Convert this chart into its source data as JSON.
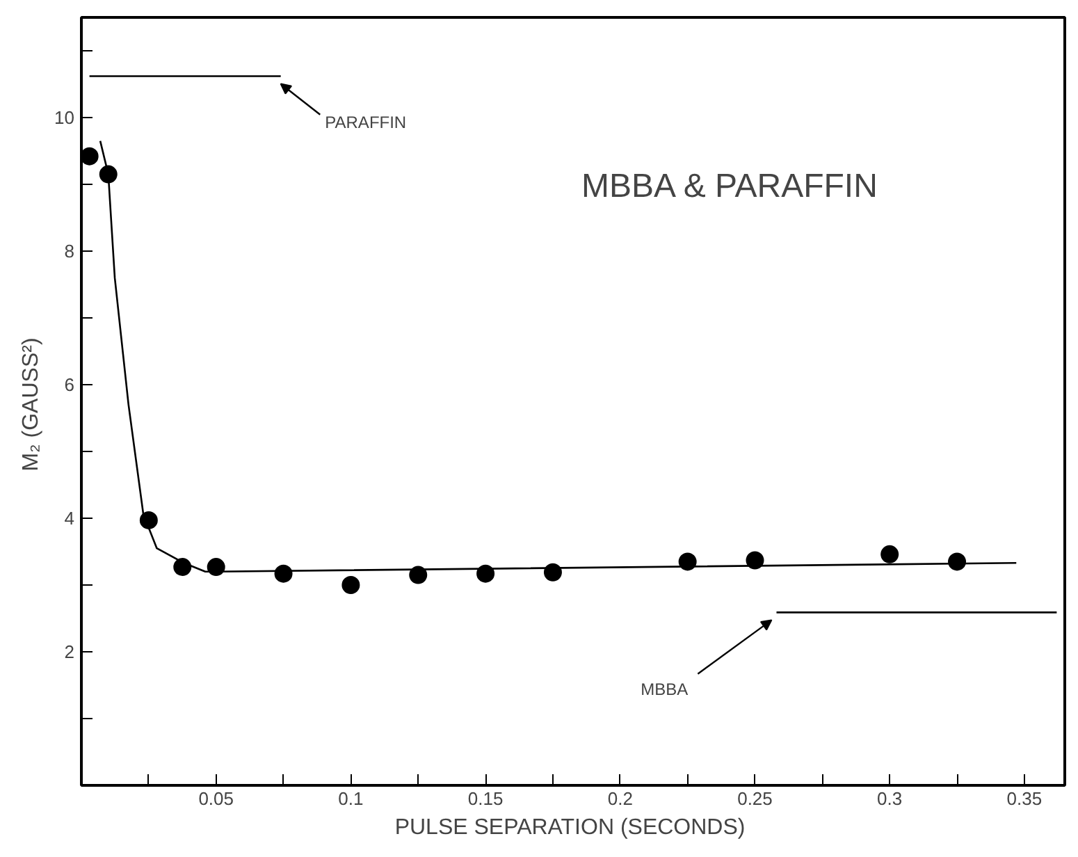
{
  "chart_data": {
    "type": "scatter",
    "title": "MBBA & PARAFFIN",
    "xlabel": "PULSE SEPARATION  (SECONDS)",
    "ylabel": "M₂  (GAUSS²)",
    "xlim": [
      0,
      0.365
    ],
    "ylim": [
      0,
      11.5
    ],
    "xticks": [
      {
        "value": 0.025,
        "label": null
      },
      0.05,
      {
        "value": 0.075,
        "label": null
      },
      0.1,
      {
        "value": 0.125,
        "label": null
      },
      0.15,
      {
        "value": 0.175,
        "label": null
      },
      0.2,
      {
        "value": 0.225,
        "label": null
      },
      0.25,
      {
        "value": 0.275,
        "label": null
      },
      0.3,
      {
        "value": 0.325,
        "label": null
      },
      0.35
    ],
    "yticks": [
      {
        "value": 1,
        "label": null
      },
      2,
      {
        "value": 3,
        "label": null
      },
      4,
      {
        "value": 5,
        "label": null
      },
      6,
      {
        "value": 7,
        "label": null
      },
      8,
      {
        "value": 9,
        "label": null
      },
      10,
      {
        "value": 11,
        "label": null
      }
    ],
    "series": [
      {
        "marker": "circle",
        "color": "#000000",
        "x": [
          0.003,
          0.01,
          0.025,
          0.0375,
          0.05,
          0.075,
          0.1,
          0.125,
          0.15,
          0.175,
          0.225,
          0.25,
          0.3,
          0.325
        ],
        "values": [
          9.42,
          9.15,
          3.97,
          3.27,
          3.27,
          3.17,
          3.0,
          3.15,
          3.17,
          3.19,
          3.35,
          3.37,
          3.46,
          3.35
        ]
      },
      {
        "type": "line",
        "color": "#000000",
        "x": [
          0.007,
          0.01,
          0.011,
          0.0124,
          0.0175,
          0.023,
          0.028,
          0.038,
          0.046,
          0.05,
          0.347
        ],
        "values": [
          9.65,
          9.15,
          8.5,
          7.6,
          5.7,
          4.06,
          3.55,
          3.33,
          3.2,
          3.2,
          3.33
        ]
      },
      {
        "type": "line",
        "name": "PARAFFIN",
        "color": "#000000",
        "x": [
          0.003,
          0.074
        ],
        "values": [
          10.62,
          10.62
        ]
      },
      {
        "type": "line",
        "name": "MBBA",
        "color": "#000000",
        "x": [
          0.258,
          0.362
        ],
        "values": [
          2.59,
          2.59
        ]
      }
    ]
  }
}
